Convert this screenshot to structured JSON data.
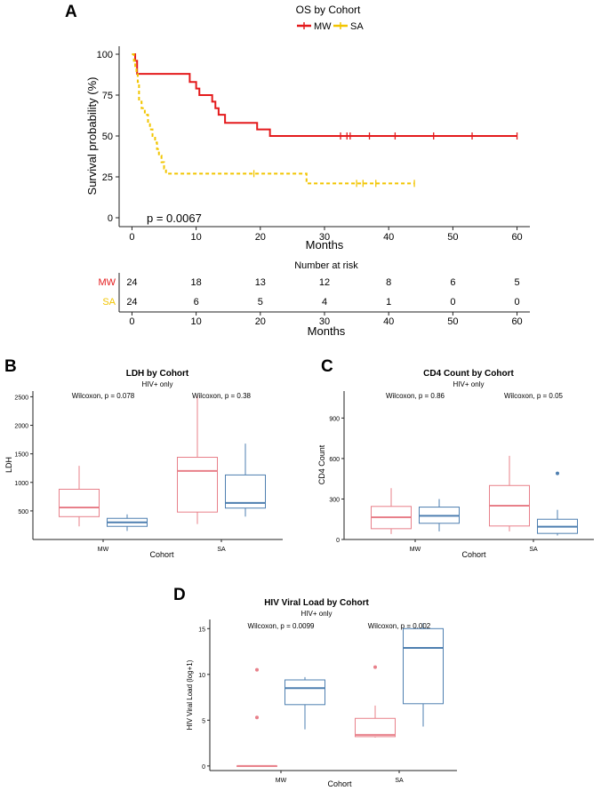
{
  "colors": {
    "mw": "#e41a1c",
    "sa": "#f2c500",
    "box_red": "#e8808a",
    "box_blue": "#4e7fb0",
    "axis": "#222222"
  },
  "chart_data": [
    {
      "panel_label": "A",
      "type": "line",
      "subtype": "kaplan-meier",
      "title": "OS by Cohort",
      "legend": [
        "MW",
        "SA"
      ],
      "xlabel": "Months",
      "ylabel": "Survival probability (%)",
      "xlim": [
        -2,
        62
      ],
      "ylim": [
        0,
        100
      ],
      "xticks": [
        0,
        10,
        20,
        30,
        40,
        50,
        60
      ],
      "yticks": [
        0,
        25,
        50,
        75,
        100
      ],
      "pvalue": "p = 0.0067",
      "series": [
        {
          "name": "MW",
          "style": "solid",
          "steps": [
            [
              0,
              100
            ],
            [
              0.5,
              96
            ],
            [
              0.8,
              88
            ],
            [
              8,
              88
            ],
            [
              9,
              83
            ],
            [
              10,
              79
            ],
            [
              10.5,
              75
            ],
            [
              12,
              75
            ],
            [
              12.5,
              71
            ],
            [
              13,
              67
            ],
            [
              13.5,
              63
            ],
            [
              14.5,
              58
            ],
            [
              19,
              58
            ],
            [
              19.5,
              54
            ],
            [
              21.5,
              50
            ],
            [
              60,
              50
            ]
          ],
          "censors": [
            [
              32.5,
              50
            ],
            [
              33.5,
              50
            ],
            [
              34,
              50
            ],
            [
              37,
              50
            ],
            [
              41,
              50
            ],
            [
              47,
              50
            ],
            [
              53,
              50
            ],
            [
              60,
              50
            ]
          ]
        },
        {
          "name": "SA",
          "style": "dashed",
          "steps": [
            [
              0,
              100
            ],
            [
              0.3,
              96
            ],
            [
              0.5,
              92
            ],
            [
              0.7,
              88
            ],
            [
              0.9,
              83
            ],
            [
              1.1,
              71
            ],
            [
              1.5,
              67
            ],
            [
              2,
              63
            ],
            [
              2.5,
              58
            ],
            [
              2.8,
              54
            ],
            [
              3.2,
              50
            ],
            [
              3.6,
              46
            ],
            [
              3.9,
              42
            ],
            [
              4.2,
              38
            ],
            [
              4.6,
              34
            ],
            [
              5,
              30
            ],
            [
              5.3,
              27
            ],
            [
              27,
              27
            ],
            [
              27.2,
              21
            ],
            [
              44,
              21
            ]
          ],
          "censors": [
            [
              19,
              27
            ],
            [
              35,
              21
            ],
            [
              36,
              21
            ],
            [
              38,
              21
            ],
            [
              44,
              21
            ]
          ]
        }
      ],
      "risk_table": {
        "title": "Number at risk",
        "xlabel": "Months",
        "times": [
          0,
          10,
          20,
          30,
          40,
          50,
          60
        ],
        "rows": [
          {
            "name": "MW",
            "values": [
              24,
              18,
              13,
              12,
              8,
              6,
              5
            ]
          },
          {
            "name": "SA",
            "values": [
              24,
              6,
              5,
              4,
              1,
              0,
              0
            ]
          }
        ]
      }
    },
    {
      "panel_label": "B",
      "type": "box",
      "title": "LDH by Cohort",
      "subtitle": "HIV+ only",
      "xlabel": "Cohort",
      "ylabel": "LDH",
      "categories": [
        "MW",
        "SA"
      ],
      "ylim": [
        0,
        2600
      ],
      "yticks": [
        500,
        1000,
        1500,
        2000,
        2500
      ],
      "annotations": [
        "Wilcoxon, p = 0.078",
        "Wilcoxon, p = 0.38"
      ],
      "boxes": [
        {
          "category": "MW",
          "group": "red",
          "min": 230,
          "q1": 400,
          "median": 560,
          "q3": 880,
          "max": 1290,
          "outliers": []
        },
        {
          "category": "MW",
          "group": "blue",
          "min": 150,
          "q1": 230,
          "median": 300,
          "q3": 370,
          "max": 440,
          "outliers": []
        },
        {
          "category": "SA",
          "group": "red",
          "min": 270,
          "q1": 480,
          "median": 1200,
          "q3": 1440,
          "max": 2520,
          "outliers": []
        },
        {
          "category": "SA",
          "group": "blue",
          "min": 400,
          "q1": 550,
          "median": 640,
          "q3": 1130,
          "max": 1680,
          "outliers": []
        }
      ]
    },
    {
      "panel_label": "C",
      "type": "box",
      "title": "CD4 Count by Cohort",
      "subtitle": "HIV+ only",
      "xlabel": "Cohort",
      "ylabel": "CD4 Count",
      "categories": [
        "MW",
        "SA"
      ],
      "ylim": [
        0,
        1100
      ],
      "yticks": [
        0,
        300,
        600,
        900
      ],
      "annotations": [
        "Wilcoxon, p = 0.86",
        "Wilcoxon, p = 0.05"
      ],
      "boxes": [
        {
          "category": "MW",
          "group": "red",
          "min": 40,
          "q1": 80,
          "median": 165,
          "q3": 245,
          "max": 380,
          "outliers": []
        },
        {
          "category": "MW",
          "group": "blue",
          "min": 60,
          "q1": 120,
          "median": 175,
          "q3": 240,
          "max": 300,
          "outliers": []
        },
        {
          "category": "SA",
          "group": "red",
          "min": 60,
          "q1": 100,
          "median": 250,
          "q3": 400,
          "max": 620,
          "outliers": []
        },
        {
          "category": "SA",
          "group": "blue",
          "min": 30,
          "q1": 45,
          "median": 95,
          "q3": 150,
          "max": 220,
          "outliers": [
            490
          ]
        }
      ]
    },
    {
      "panel_label": "D",
      "type": "box",
      "title": "HIV Viral Load by Cohort",
      "subtitle": "HIV+ only",
      "xlabel": "Cohort",
      "ylabel": "HIV Viral Load (log+1)",
      "categories": [
        "MW",
        "SA"
      ],
      "ylim": [
        -0.5,
        16
      ],
      "yticks": [
        0,
        5,
        10,
        15
      ],
      "annotations": [
        "Wilcoxon, p = 0.0099",
        "Wilcoxon, p = 0.002"
      ],
      "boxes": [
        {
          "category": "MW",
          "group": "red",
          "min": 0,
          "q1": 0,
          "median": 0,
          "q3": 0,
          "max": 0,
          "outliers": [
            5.3,
            10.5
          ]
        },
        {
          "category": "MW",
          "group": "blue",
          "min": 4,
          "q1": 6.7,
          "median": 8.5,
          "q3": 9.4,
          "max": 9.7,
          "outliers": []
        },
        {
          "category": "SA",
          "group": "red",
          "min": 3.1,
          "q1": 3.2,
          "median": 3.4,
          "q3": 5.2,
          "max": 6.6,
          "outliers": [
            10.8
          ]
        },
        {
          "category": "SA",
          "group": "blue",
          "min": 4.3,
          "q1": 6.8,
          "median": 12.9,
          "q3": 15.0,
          "max": 15.6,
          "outliers": []
        }
      ]
    }
  ]
}
